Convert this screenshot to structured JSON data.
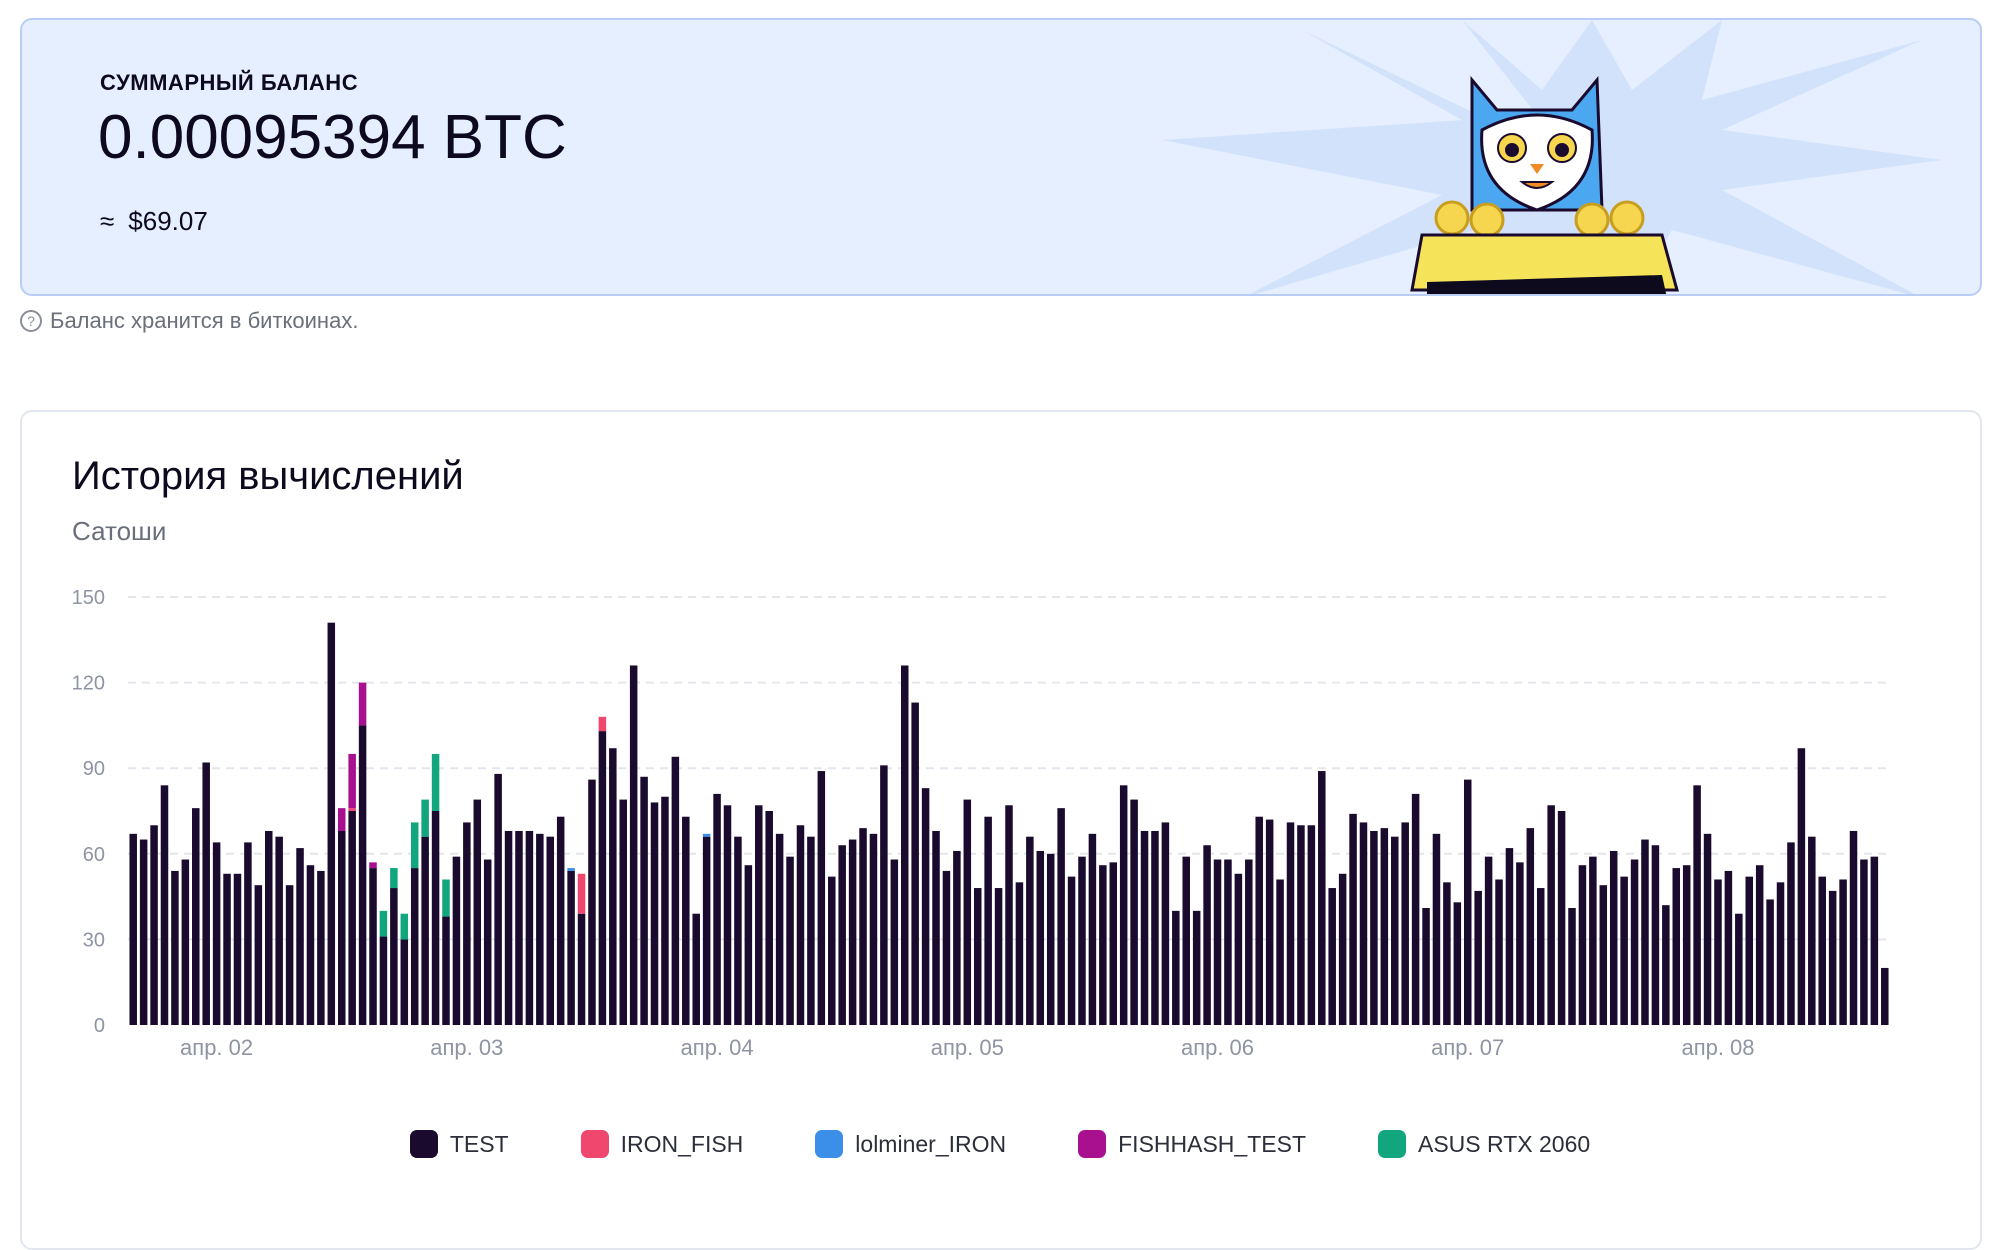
{
  "balance": {
    "label": "СУММАРНЫЙ БАЛАНС",
    "value": "0.00095394 BTC",
    "usd_approx": "≈",
    "usd": "$69.07",
    "note": "Баланс хранится в биткоинах.",
    "help_icon": "question-circle-icon"
  },
  "chart_data": {
    "type": "bar",
    "stacked": true,
    "title": "История вычислений",
    "ylabel": "Сатоши",
    "ylim": [
      0,
      150
    ],
    "yticks": [
      0,
      30,
      60,
      90,
      120,
      150
    ],
    "grid": true,
    "legend_position": "bottom",
    "x_tick_labels": [
      {
        "label": "апр. 02",
        "bar_index": 8
      },
      {
        "label": "апр. 03",
        "bar_index": 32
      },
      {
        "label": "апр. 04",
        "bar_index": 56
      },
      {
        "label": "апр. 05",
        "bar_index": 80
      },
      {
        "label": "апр. 06",
        "bar_index": 104
      },
      {
        "label": "апр. 07",
        "bar_index": 128
      },
      {
        "label": "апр. 08",
        "bar_index": 152
      }
    ],
    "series": [
      {
        "name": "TEST",
        "color": "#1a0b2e",
        "values": [
          67,
          65,
          70,
          84,
          54,
          58,
          76,
          92,
          64,
          53,
          53,
          64,
          49,
          68,
          66,
          49,
          62,
          56,
          54,
          141,
          68,
          75,
          105,
          55,
          31,
          48,
          30,
          55,
          66,
          75,
          38,
          59,
          71,
          79,
          58,
          88,
          68,
          68,
          68,
          67,
          66,
          73,
          54,
          39,
          86,
          103,
          97,
          79,
          126,
          87,
          78,
          80,
          94,
          73,
          39,
          66,
          81,
          77,
          66,
          56,
          77,
          75,
          67,
          59,
          70,
          66,
          89,
          52,
          63,
          65,
          69,
          67,
          91,
          58,
          126,
          113,
          83,
          68,
          54,
          61,
          79,
          48,
          73,
          48,
          77,
          50,
          66,
          61,
          60,
          76,
          52,
          59,
          67,
          56,
          57,
          84,
          79,
          68,
          68,
          71,
          40,
          59,
          40,
          63,
          58,
          58,
          53,
          58,
          73,
          72,
          51,
          71,
          70,
          70,
          89,
          48,
          53,
          74,
          71,
          68,
          69,
          66,
          71,
          81,
          41,
          67,
          50,
          43,
          86,
          47,
          59,
          51,
          62,
          57,
          69,
          48,
          77,
          75,
          41,
          56,
          59,
          49,
          61,
          52,
          58,
          65,
          63,
          42,
          55,
          56,
          84,
          67,
          51,
          54,
          39,
          52,
          56,
          44,
          50,
          64,
          97,
          66,
          52,
          47,
          51,
          68,
          58,
          59,
          20
        ]
      },
      {
        "name": "IRON_FISH",
        "color": "#f0476e",
        "values": [
          0,
          0,
          0,
          0,
          0,
          0,
          0,
          0,
          0,
          0,
          0,
          0,
          0,
          0,
          0,
          0,
          0,
          0,
          0,
          0,
          0,
          1,
          0,
          0,
          0,
          0,
          0,
          0,
          0,
          0,
          0,
          0,
          0,
          0,
          0,
          0,
          0,
          0,
          0,
          0,
          0,
          0,
          0,
          14,
          0,
          5,
          0,
          0,
          0,
          0,
          0,
          0,
          0,
          0,
          0,
          0,
          0,
          0,
          0,
          0,
          0,
          0,
          0,
          0,
          0,
          0,
          0,
          0,
          0,
          0,
          0,
          0,
          0,
          0,
          0,
          0,
          0,
          0,
          0,
          0,
          0,
          0,
          0,
          0,
          0,
          0,
          0,
          0,
          0,
          0,
          0,
          0,
          0,
          0,
          0,
          0,
          0,
          0,
          0,
          0,
          0,
          0,
          0,
          0,
          0,
          0,
          0,
          0,
          0,
          0,
          0,
          0,
          0,
          0,
          0,
          0,
          0,
          0,
          0,
          0,
          0,
          0,
          0,
          0,
          0,
          0,
          0,
          0,
          0,
          0,
          0,
          0,
          0,
          0,
          0,
          0,
          0,
          0,
          0,
          0,
          0,
          0,
          0,
          0,
          0,
          0,
          0,
          0,
          0,
          0,
          0,
          0,
          0,
          0,
          0,
          0,
          0,
          0,
          0,
          0,
          0,
          0,
          0,
          0,
          0,
          0,
          0,
          0,
          0
        ]
      },
      {
        "name": "lolminer_IRON",
        "color": "#3b8fe8",
        "values": [
          0,
          0,
          0,
          0,
          0,
          0,
          0,
          0,
          0,
          0,
          0,
          0,
          0,
          0,
          0,
          0,
          0,
          0,
          0,
          0,
          0,
          0,
          0,
          0,
          0,
          0,
          0,
          0,
          0,
          0,
          0,
          0,
          0,
          0,
          0,
          0,
          0,
          0,
          0,
          0,
          0,
          0,
          1,
          0,
          0,
          0,
          0,
          0,
          0,
          0,
          0,
          0,
          0,
          0,
          0,
          1,
          0,
          0,
          0,
          0,
          0,
          0,
          0,
          0,
          0,
          0,
          0,
          0,
          0,
          0,
          0,
          0,
          0,
          0,
          0,
          0,
          0,
          0,
          0,
          0,
          0,
          0,
          0,
          0,
          0,
          0,
          0,
          0,
          0,
          0,
          0,
          0,
          0,
          0,
          0,
          0,
          0,
          0,
          0,
          0,
          0,
          0,
          0,
          0,
          0,
          0,
          0,
          0,
          0,
          0,
          0,
          0,
          0,
          0,
          0,
          0,
          0,
          0,
          0,
          0,
          0,
          0,
          0,
          0,
          0,
          0,
          0,
          0,
          0,
          0,
          0,
          0,
          0,
          0,
          0,
          0,
          0,
          0,
          0,
          0,
          0,
          0,
          0,
          0,
          0,
          0,
          0,
          0,
          0,
          0,
          0,
          0,
          0,
          0,
          0,
          0,
          0,
          0,
          0,
          0,
          0,
          0,
          0,
          0,
          0,
          0,
          0,
          0,
          0
        ]
      },
      {
        "name": "FISHHASH_TEST",
        "color": "#a8108f",
        "values": [
          0,
          0,
          0,
          0,
          0,
          0,
          0,
          0,
          0,
          0,
          0,
          0,
          0,
          0,
          0,
          0,
          0,
          0,
          0,
          0,
          8,
          19,
          15,
          2,
          0,
          0,
          0,
          0,
          0,
          0,
          0,
          0,
          0,
          0,
          0,
          0,
          0,
          0,
          0,
          0,
          0,
          0,
          0,
          0,
          0,
          0,
          0,
          0,
          0,
          0,
          0,
          0,
          0,
          0,
          0,
          0,
          0,
          0,
          0,
          0,
          0,
          0,
          0,
          0,
          0,
          0,
          0,
          0,
          0,
          0,
          0,
          0,
          0,
          0,
          0,
          0,
          0,
          0,
          0,
          0,
          0,
          0,
          0,
          0,
          0,
          0,
          0,
          0,
          0,
          0,
          0,
          0,
          0,
          0,
          0,
          0,
          0,
          0,
          0,
          0,
          0,
          0,
          0,
          0,
          0,
          0,
          0,
          0,
          0,
          0,
          0,
          0,
          0,
          0,
          0,
          0,
          0,
          0,
          0,
          0,
          0,
          0,
          0,
          0,
          0,
          0,
          0,
          0,
          0,
          0,
          0,
          0,
          0,
          0,
          0,
          0,
          0,
          0,
          0,
          0,
          0,
          0,
          0,
          0,
          0,
          0,
          0,
          0,
          0,
          0,
          0,
          0,
          0,
          0,
          0,
          0,
          0,
          0,
          0,
          0,
          0,
          0,
          0,
          0,
          0,
          0,
          0,
          0,
          0
        ]
      },
      {
        "name": "ASUS RTX 2060",
        "color": "#12a67f",
        "values": [
          0,
          0,
          0,
          0,
          0,
          0,
          0,
          0,
          0,
          0,
          0,
          0,
          0,
          0,
          0,
          0,
          0,
          0,
          0,
          0,
          0,
          0,
          0,
          0,
          9,
          7,
          9,
          16,
          13,
          20,
          13,
          0,
          0,
          0,
          0,
          0,
          0,
          0,
          0,
          0,
          0,
          0,
          0,
          0,
          0,
          0,
          0,
          0,
          0,
          0,
          0,
          0,
          0,
          0,
          0,
          0,
          0,
          0,
          0,
          0,
          0,
          0,
          0,
          0,
          0,
          0,
          0,
          0,
          0,
          0,
          0,
          0,
          0,
          0,
          0,
          0,
          0,
          0,
          0,
          0,
          0,
          0,
          0,
          0,
          0,
          0,
          0,
          0,
          0,
          0,
          0,
          0,
          0,
          0,
          0,
          0,
          0,
          0,
          0,
          0,
          0,
          0,
          0,
          0,
          0,
          0,
          0,
          0,
          0,
          0,
          0,
          0,
          0,
          0,
          0,
          0,
          0,
          0,
          0,
          0,
          0,
          0,
          0,
          0,
          0,
          0,
          0,
          0,
          0,
          0,
          0,
          0,
          0,
          0,
          0,
          0,
          0,
          0,
          0,
          0,
          0,
          0,
          0,
          0,
          0,
          0,
          0,
          0,
          0,
          0,
          0,
          0,
          0,
          0,
          0,
          0,
          0,
          0,
          0,
          0,
          0,
          0,
          0,
          0,
          0,
          0,
          0,
          0,
          0
        ]
      }
    ]
  }
}
